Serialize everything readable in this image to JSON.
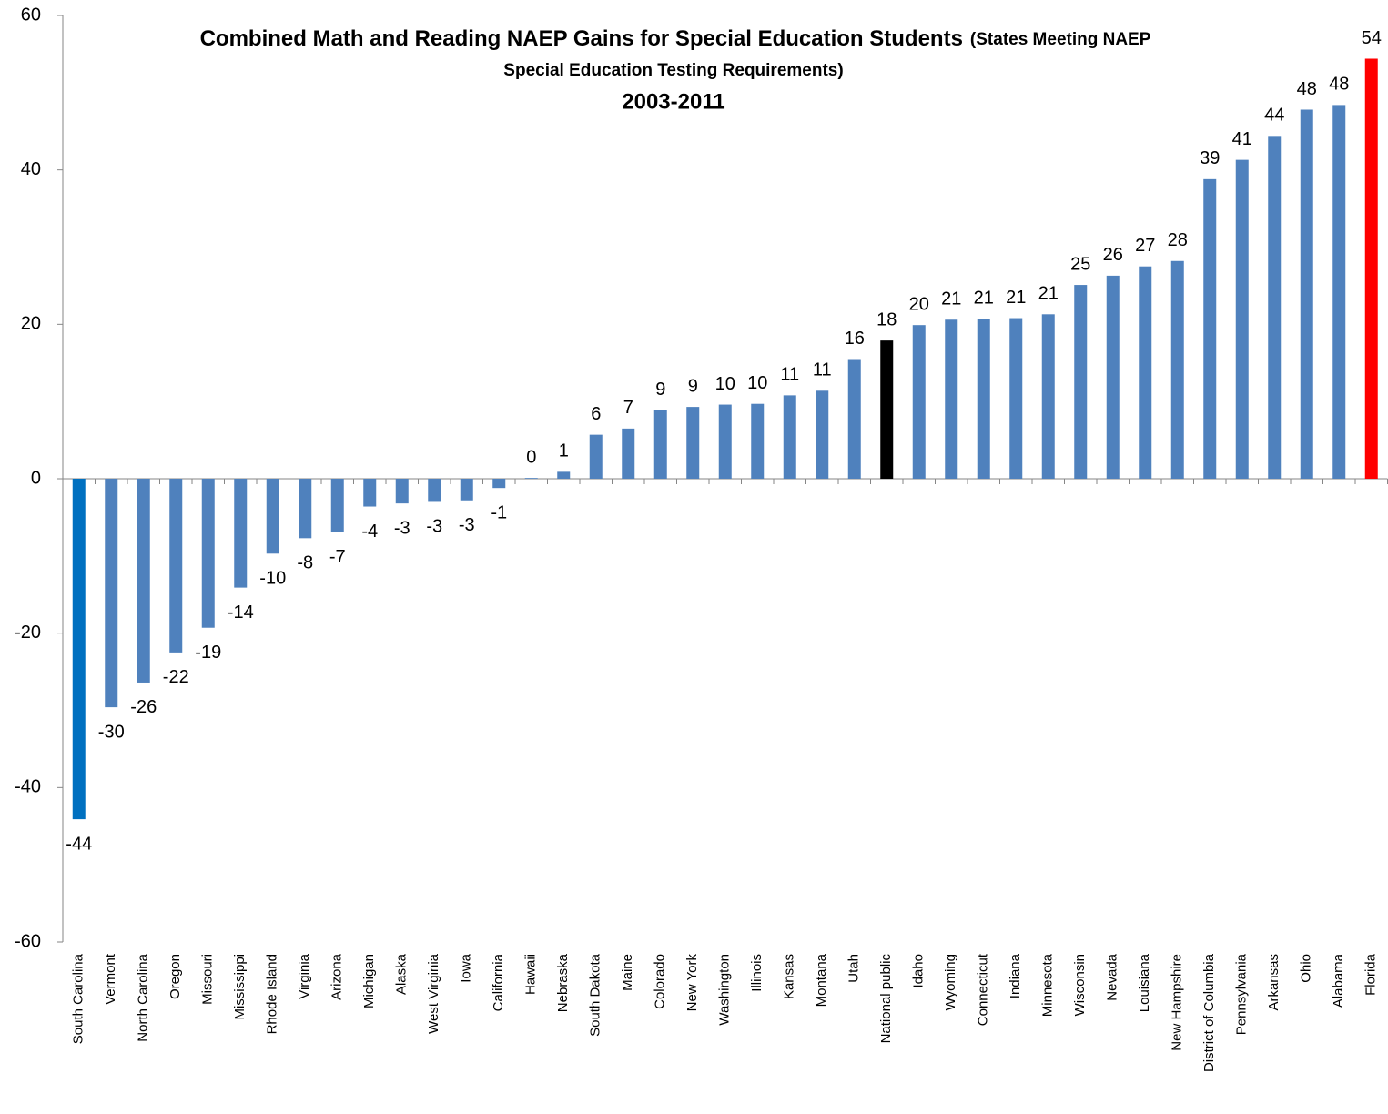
{
  "chart_data": {
    "type": "bar",
    "title": "Combined Math and Reading NAEP  Gains for Special Education Students",
    "subtitle": [
      "(States Meeting NAEP",
      "Special Education Testing Requirements)"
    ],
    "period": "2003-2011",
    "categories": [
      "South Carolina",
      "Vermont",
      "North Carolina",
      "Oregon",
      "Missouri",
      "Mississippi",
      "Rhode Island",
      "Virginia",
      "Arizona",
      "Michigan",
      "Alaska",
      "West Virginia",
      "Iowa",
      "California",
      "Hawaii",
      "Nebraska",
      "South Dakota",
      "Maine",
      "Colorado",
      "New York",
      "Washington",
      "Illinois",
      "Kansas",
      "Montana",
      "Utah",
      "National public",
      "Idaho",
      "Wyoming",
      "Connecticut",
      "Indiana",
      "Minnesota",
      "Wisconsin",
      "Nevada",
      "Louisiana",
      "New Hampshire",
      "District of Columbia",
      "Pennsylvania",
      "Arkansas",
      "Ohio",
      "Alabama",
      "Florida"
    ],
    "values": [
      -44.1,
      -29.6,
      -26.4,
      -22.5,
      -19.3,
      -14.1,
      -9.7,
      -7.7,
      -6.9,
      -3.6,
      -3.2,
      -3.0,
      -2.8,
      -1.2,
      0.1,
      0.9,
      5.7,
      6.5,
      8.9,
      9.3,
      9.6,
      9.7,
      10.8,
      11.4,
      15.5,
      17.9,
      19.9,
      20.6,
      20.7,
      20.8,
      21.3,
      25.1,
      26.3,
      27.5,
      28.2,
      38.8,
      41.3,
      44.4,
      47.8,
      48.4,
      54.4
    ],
    "value_labels": [
      "-44",
      "-30",
      "-26",
      "-22",
      "-19",
      "-14",
      "-10",
      "-8",
      "-7",
      "-4",
      "-3",
      "-3",
      "-3",
      "-1",
      "0",
      "1",
      "6",
      "7",
      "9",
      "9",
      "10",
      "10",
      "11",
      "11",
      "16",
      "18",
      "20",
      "21",
      "21",
      "21",
      "21",
      "25",
      "26",
      "27",
      "28",
      "39",
      "41",
      "44",
      "48",
      "48",
      "54"
    ],
    "colors": [
      "#0070c0",
      "#4f81bd",
      "#4f81bd",
      "#4f81bd",
      "#4f81bd",
      "#4f81bd",
      "#4f81bd",
      "#4f81bd",
      "#4f81bd",
      "#4f81bd",
      "#4f81bd",
      "#4f81bd",
      "#4f81bd",
      "#4f81bd",
      "#4f81bd",
      "#4f81bd",
      "#4f81bd",
      "#4f81bd",
      "#4f81bd",
      "#4f81bd",
      "#4f81bd",
      "#4f81bd",
      "#4f81bd",
      "#4f81bd",
      "#4f81bd",
      "#000000",
      "#4f81bd",
      "#4f81bd",
      "#4f81bd",
      "#4f81bd",
      "#4f81bd",
      "#4f81bd",
      "#4f81bd",
      "#4f81bd",
      "#4f81bd",
      "#4f81bd",
      "#4f81bd",
      "#4f81bd",
      "#4f81bd",
      "#4f81bd",
      "#ff0000"
    ],
    "ylim": [
      -60,
      60
    ],
    "yticks": [
      -60,
      -40,
      -20,
      0,
      20,
      40,
      60
    ],
    "grid": false
  }
}
